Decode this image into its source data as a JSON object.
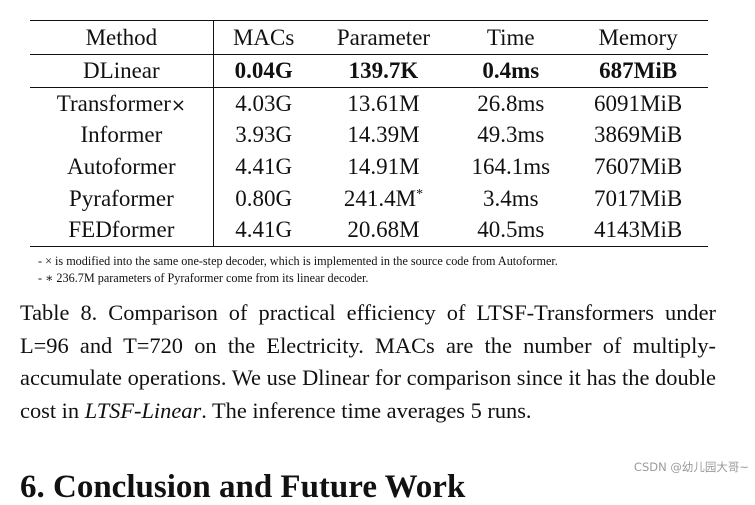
{
  "table": {
    "headers": {
      "method": "Method",
      "macs": "MACs",
      "parameter": "Parameter",
      "time": "Time",
      "memory": "Memory"
    },
    "rows": [
      {
        "method": "DLinear",
        "macs": "0.04G",
        "parameter": "139.7K",
        "time": "0.4ms",
        "memory": "687MiB",
        "bold": true
      },
      {
        "method": "Transformer",
        "method_mark": "×",
        "macs": "4.03G",
        "parameter": "13.61M",
        "time": "26.8ms",
        "memory": "6091MiB"
      },
      {
        "method": "Informer",
        "macs": "3.93G",
        "parameter": "14.39M",
        "time": "49.3ms",
        "memory": "3869MiB"
      },
      {
        "method": "Autoformer",
        "macs": "4.41G",
        "parameter": "14.91M",
        "time": "164.1ms",
        "memory": "7607MiB"
      },
      {
        "method": "Pyraformer",
        "macs": "0.80G",
        "parameter": "241.4M",
        "parameter_mark": "*",
        "time": "3.4ms",
        "memory": "7017MiB"
      },
      {
        "method": "FEDformer",
        "macs": "4.41G",
        "parameter": "20.68M",
        "time": "40.5ms",
        "memory": "4143MiB"
      }
    ]
  },
  "footnotes": [
    "- × is modified into the same one-step decoder, which is implemented in the source code from Autoformer.",
    "- ∗ 236.7M parameters of Pyraformer come from its linear decoder."
  ],
  "caption": {
    "before_em": "Table 8. Comparison of practical efficiency of LTSF-Transformers under L=96 and T=720 on the Electricity. MACs are the number of multiply-accumulate operations. We use Dlinear for comparison since it has the double cost in ",
    "em": "LTSF-Linear",
    "after_em": ". The inference time averages 5 runs."
  },
  "section_heading": "6. Conclusion and Future Work",
  "watermark": "CSDN @幼儿园大哥~"
}
